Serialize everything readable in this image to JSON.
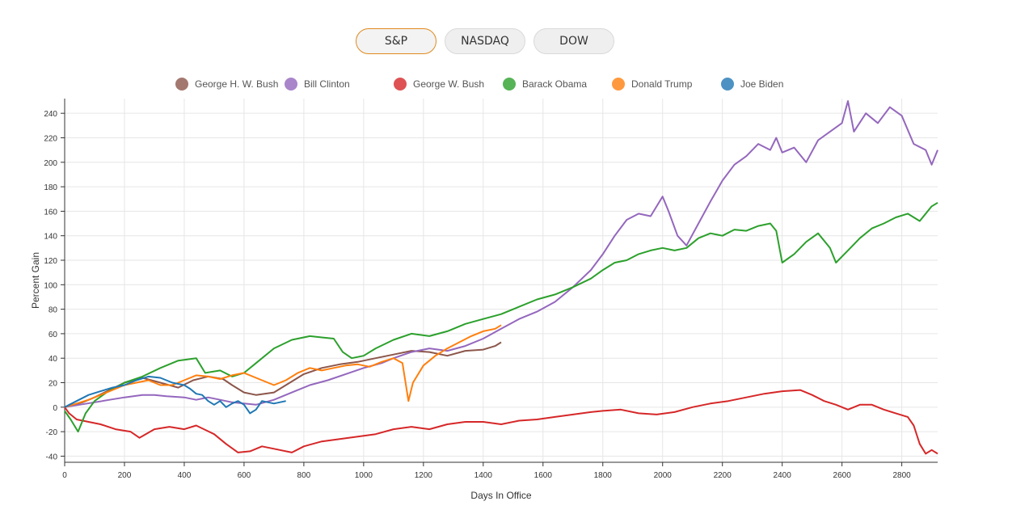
{
  "tabs": [
    {
      "label": "S&P",
      "active": true
    },
    {
      "label": "NASDAQ",
      "active": false
    },
    {
      "label": "DOW",
      "active": false
    }
  ],
  "chart_data": {
    "type": "line",
    "xlabel": "Days In Office",
    "ylabel": "Percent Gain",
    "xlim": [
      0,
      2920
    ],
    "ylim": [
      -45,
      252
    ],
    "xticks": [
      0,
      200,
      400,
      600,
      800,
      1000,
      1200,
      1400,
      1600,
      1800,
      2000,
      2200,
      2400,
      2600,
      2800
    ],
    "yticks": [
      -40,
      -20,
      0,
      20,
      40,
      60,
      80,
      100,
      120,
      140,
      160,
      180,
      200,
      220,
      240
    ],
    "grid": true,
    "legend_position": "top",
    "series": [
      {
        "name": "George H. W. Bush",
        "color": "#8c564b",
        "points": [
          [
            0,
            0
          ],
          [
            30,
            2
          ],
          [
            60,
            4
          ],
          [
            100,
            8
          ],
          [
            150,
            14
          ],
          [
            200,
            20
          ],
          [
            260,
            24
          ],
          [
            320,
            20
          ],
          [
            380,
            16
          ],
          [
            430,
            22
          ],
          [
            480,
            25
          ],
          [
            530,
            23
          ],
          [
            560,
            18
          ],
          [
            600,
            12
          ],
          [
            640,
            10
          ],
          [
            700,
            12
          ],
          [
            740,
            18
          ],
          [
            800,
            27
          ],
          [
            860,
            32
          ],
          [
            920,
            35
          ],
          [
            980,
            37
          ],
          [
            1040,
            40
          ],
          [
            1100,
            43
          ],
          [
            1160,
            46
          ],
          [
            1220,
            45
          ],
          [
            1280,
            42
          ],
          [
            1340,
            46
          ],
          [
            1400,
            47
          ],
          [
            1440,
            50
          ],
          [
            1460,
            53
          ]
        ]
      },
      {
        "name": "Bill Clinton",
        "color": "#9467bd",
        "points": [
          [
            0,
            0
          ],
          [
            50,
            2
          ],
          [
            100,
            4
          ],
          [
            150,
            6
          ],
          [
            200,
            8
          ],
          [
            260,
            10
          ],
          [
            300,
            10
          ],
          [
            340,
            9
          ],
          [
            400,
            8
          ],
          [
            440,
            6
          ],
          [
            480,
            8
          ],
          [
            520,
            6
          ],
          [
            560,
            4
          ],
          [
            600,
            3
          ],
          [
            640,
            2
          ],
          [
            700,
            6
          ],
          [
            760,
            12
          ],
          [
            820,
            18
          ],
          [
            880,
            22
          ],
          [
            940,
            27
          ],
          [
            1000,
            32
          ],
          [
            1060,
            36
          ],
          [
            1100,
            40
          ],
          [
            1160,
            45
          ],
          [
            1220,
            48
          ],
          [
            1280,
            46
          ],
          [
            1340,
            50
          ],
          [
            1400,
            56
          ],
          [
            1460,
            64
          ],
          [
            1520,
            72
          ],
          [
            1580,
            78
          ],
          [
            1640,
            86
          ],
          [
            1700,
            98
          ],
          [
            1760,
            112
          ],
          [
            1800,
            125
          ],
          [
            1840,
            140
          ],
          [
            1880,
            153
          ],
          [
            1920,
            158
          ],
          [
            1960,
            156
          ],
          [
            2000,
            172
          ],
          [
            2020,
            160
          ],
          [
            2050,
            140
          ],
          [
            2080,
            132
          ],
          [
            2120,
            150
          ],
          [
            2160,
            168
          ],
          [
            2200,
            185
          ],
          [
            2240,
            198
          ],
          [
            2280,
            205
          ],
          [
            2320,
            215
          ],
          [
            2360,
            210
          ],
          [
            2380,
            220
          ],
          [
            2400,
            208
          ],
          [
            2440,
            212
          ],
          [
            2480,
            200
          ],
          [
            2520,
            218
          ],
          [
            2560,
            225
          ],
          [
            2600,
            232
          ],
          [
            2620,
            250
          ],
          [
            2640,
            225
          ],
          [
            2680,
            240
          ],
          [
            2720,
            232
          ],
          [
            2760,
            245
          ],
          [
            2800,
            238
          ],
          [
            2840,
            215
          ],
          [
            2880,
            210
          ],
          [
            2900,
            198
          ],
          [
            2920,
            210
          ]
        ]
      },
      {
        "name": "George W. Bush",
        "color": "#d62728",
        "points": [
          [
            0,
            0
          ],
          [
            15,
            -5
          ],
          [
            40,
            -10
          ],
          [
            80,
            -12
          ],
          [
            120,
            -14
          ],
          [
            170,
            -18
          ],
          [
            220,
            -20
          ],
          [
            250,
            -25
          ],
          [
            300,
            -18
          ],
          [
            350,
            -16
          ],
          [
            400,
            -18
          ],
          [
            440,
            -15
          ],
          [
            500,
            -22
          ],
          [
            540,
            -30
          ],
          [
            580,
            -37
          ],
          [
            620,
            -36
          ],
          [
            660,
            -32
          ],
          [
            700,
            -34
          ],
          [
            760,
            -37
          ],
          [
            800,
            -32
          ],
          [
            860,
            -28
          ],
          [
            920,
            -26
          ],
          [
            980,
            -24
          ],
          [
            1040,
            -22
          ],
          [
            1100,
            -18
          ],
          [
            1160,
            -16
          ],
          [
            1220,
            -18
          ],
          [
            1280,
            -14
          ],
          [
            1340,
            -12
          ],
          [
            1400,
            -12
          ],
          [
            1460,
            -14
          ],
          [
            1520,
            -11
          ],
          [
            1580,
            -10
          ],
          [
            1640,
            -8
          ],
          [
            1700,
            -6
          ],
          [
            1760,
            -4
          ],
          [
            1800,
            -3
          ],
          [
            1860,
            -2
          ],
          [
            1920,
            -5
          ],
          [
            1980,
            -6
          ],
          [
            2040,
            -4
          ],
          [
            2100,
            0
          ],
          [
            2160,
            3
          ],
          [
            2220,
            5
          ],
          [
            2280,
            8
          ],
          [
            2340,
            11
          ],
          [
            2400,
            13
          ],
          [
            2460,
            14
          ],
          [
            2500,
            10
          ],
          [
            2540,
            5
          ],
          [
            2580,
            2
          ],
          [
            2620,
            -2
          ],
          [
            2660,
            2
          ],
          [
            2700,
            2
          ],
          [
            2740,
            -2
          ],
          [
            2780,
            -5
          ],
          [
            2820,
            -8
          ],
          [
            2840,
            -15
          ],
          [
            2860,
            -30
          ],
          [
            2880,
            -38
          ],
          [
            2900,
            -35
          ],
          [
            2920,
            -38
          ]
        ]
      },
      {
        "name": "Barack Obama",
        "color": "#2ca02c",
        "points": [
          [
            0,
            -3
          ],
          [
            20,
            -10
          ],
          [
            45,
            -20
          ],
          [
            70,
            -5
          ],
          [
            100,
            5
          ],
          [
            140,
            12
          ],
          [
            200,
            20
          ],
          [
            260,
            25
          ],
          [
            320,
            32
          ],
          [
            380,
            38
          ],
          [
            440,
            40
          ],
          [
            470,
            28
          ],
          [
            520,
            30
          ],
          [
            560,
            25
          ],
          [
            600,
            28
          ],
          [
            640,
            36
          ],
          [
            700,
            48
          ],
          [
            760,
            55
          ],
          [
            820,
            58
          ],
          [
            860,
            57
          ],
          [
            900,
            56
          ],
          [
            930,
            45
          ],
          [
            960,
            40
          ],
          [
            1000,
            42
          ],
          [
            1040,
            48
          ],
          [
            1100,
            55
          ],
          [
            1160,
            60
          ],
          [
            1220,
            58
          ],
          [
            1280,
            62
          ],
          [
            1340,
            68
          ],
          [
            1400,
            72
          ],
          [
            1460,
            76
          ],
          [
            1520,
            82
          ],
          [
            1580,
            88
          ],
          [
            1640,
            92
          ],
          [
            1700,
            98
          ],
          [
            1760,
            105
          ],
          [
            1800,
            112
          ],
          [
            1840,
            118
          ],
          [
            1880,
            120
          ],
          [
            1920,
            125
          ],
          [
            1960,
            128
          ],
          [
            2000,
            130
          ],
          [
            2040,
            128
          ],
          [
            2080,
            130
          ],
          [
            2120,
            138
          ],
          [
            2160,
            142
          ],
          [
            2200,
            140
          ],
          [
            2240,
            145
          ],
          [
            2280,
            144
          ],
          [
            2320,
            148
          ],
          [
            2360,
            150
          ],
          [
            2380,
            144
          ],
          [
            2400,
            118
          ],
          [
            2440,
            125
          ],
          [
            2480,
            135
          ],
          [
            2520,
            142
          ],
          [
            2560,
            130
          ],
          [
            2580,
            118
          ],
          [
            2620,
            128
          ],
          [
            2660,
            138
          ],
          [
            2700,
            146
          ],
          [
            2740,
            150
          ],
          [
            2780,
            155
          ],
          [
            2820,
            158
          ],
          [
            2860,
            152
          ],
          [
            2900,
            164
          ],
          [
            2920,
            167
          ]
        ]
      },
      {
        "name": "Donald Trump",
        "color": "#ff7f0e",
        "points": [
          [
            0,
            0
          ],
          [
            40,
            3
          ],
          [
            80,
            6
          ],
          [
            120,
            10
          ],
          [
            160,
            14
          ],
          [
            200,
            18
          ],
          [
            240,
            20
          ],
          [
            280,
            22
          ],
          [
            320,
            18
          ],
          [
            360,
            18
          ],
          [
            400,
            22
          ],
          [
            440,
            26
          ],
          [
            480,
            25
          ],
          [
            520,
            23
          ],
          [
            560,
            26
          ],
          [
            600,
            28
          ],
          [
            640,
            24
          ],
          [
            680,
            20
          ],
          [
            700,
            18
          ],
          [
            740,
            22
          ],
          [
            780,
            28
          ],
          [
            820,
            32
          ],
          [
            860,
            30
          ],
          [
            900,
            32
          ],
          [
            940,
            34
          ],
          [
            980,
            35
          ],
          [
            1020,
            33
          ],
          [
            1060,
            37
          ],
          [
            1100,
            40
          ],
          [
            1130,
            36
          ],
          [
            1150,
            5
          ],
          [
            1165,
            20
          ],
          [
            1200,
            34
          ],
          [
            1240,
            42
          ],
          [
            1280,
            48
          ],
          [
            1320,
            53
          ],
          [
            1360,
            58
          ],
          [
            1400,
            62
          ],
          [
            1440,
            64
          ],
          [
            1460,
            67
          ]
        ]
      },
      {
        "name": "Joe Biden",
        "color": "#1f77b4",
        "points": [
          [
            0,
            0
          ],
          [
            40,
            5
          ],
          [
            80,
            10
          ],
          [
            120,
            13
          ],
          [
            160,
            16
          ],
          [
            200,
            18
          ],
          [
            240,
            22
          ],
          [
            280,
            25
          ],
          [
            320,
            24
          ],
          [
            360,
            20
          ],
          [
            400,
            18
          ],
          [
            420,
            15
          ],
          [
            440,
            11
          ],
          [
            460,
            10
          ],
          [
            480,
            5
          ],
          [
            500,
            2
          ],
          [
            520,
            5
          ],
          [
            540,
            0
          ],
          [
            560,
            3
          ],
          [
            580,
            5
          ],
          [
            600,
            2
          ],
          [
            620,
            -5
          ],
          [
            640,
            -2
          ],
          [
            660,
            5
          ],
          [
            700,
            3
          ],
          [
            740,
            5
          ]
        ]
      }
    ]
  }
}
